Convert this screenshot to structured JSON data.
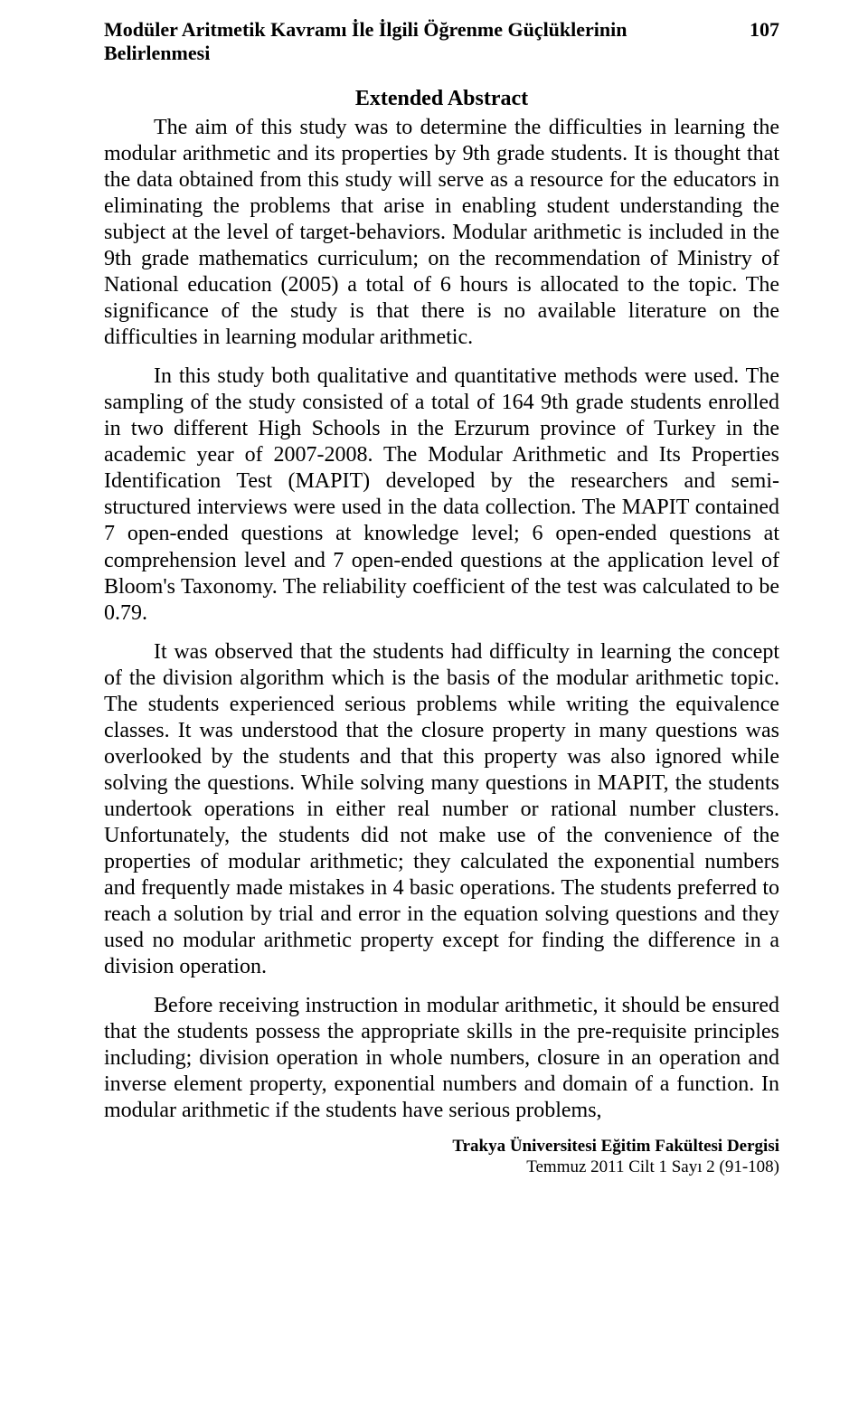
{
  "header": {
    "running_title": "Modüler Aritmetik Kavramı İle İlgili Öğrenme Güçlüklerinin Belirlenmesi",
    "page_number": "107"
  },
  "section_title": "Extended Abstract",
  "paragraphs": {
    "p1": "The aim of this study was to determine the difficulties in learning the modular arithmetic and its properties by 9th grade students. It is thought that the data obtained from this study will serve as a resource for the educators in eliminating the problems that arise in enabling student understanding the subject at the level of target-behaviors. Modular arithmetic is included in the 9th grade mathematics curriculum; on the recommendation of Ministry of National education (2005) a total of 6 hours is allocated to the topic. The significance of the study is that there is no available literature on the difficulties in learning modular arithmetic.",
    "p2": "In this study both qualitative and quantitative methods were used. The sampling of the study consisted of a total of 164 9th grade students enrolled in two different High Schools in the Erzurum province of Turkey in the academic year of 2007-2008. The Modular Arithmetic and Its Properties Identification Test (MAPIT) developed by the researchers and semi-structured interviews were used in the data collection. The MAPIT contained 7 open-ended questions at knowledge level; 6 open-ended questions at comprehension level and 7 open-ended questions at the application level of Bloom's Taxonomy. The reliability coefficient of the test was calculated to be 0.79.",
    "p3": "It was observed that the students had difficulty in learning the concept of the division algorithm which is the basis of the modular arithmetic topic. The students experienced serious problems while writing the equivalence classes.  It was understood that the closure property in many questions was overlooked by the students and that this property was also ignored while solving the questions. While solving many questions in MAPIT, the students undertook operations in either real number or rational number clusters. Unfortunately, the students did not make use of the convenience of the properties of modular arithmetic; they calculated the exponential numbers and frequently made mistakes in 4 basic operations. The students preferred to reach a solution by trial and error in the equation solving questions and they used no modular arithmetic property except for finding the difference in a division operation.",
    "p4": "Before receiving instruction in modular arithmetic, it should be ensured that the students  possess the appropriate skills in the pre-requisite principles including;  division operation in whole numbers, closure in an operation and inverse element property, exponential numbers and  domain of a function.  In modular arithmetic if the students have serious problems,"
  },
  "footer": {
    "journal": "Trakya Üniversitesi Eğitim Fakültesi Dergisi",
    "issue": "Temmuz 2011 Cilt 1 Sayı 2 (91-108)"
  }
}
